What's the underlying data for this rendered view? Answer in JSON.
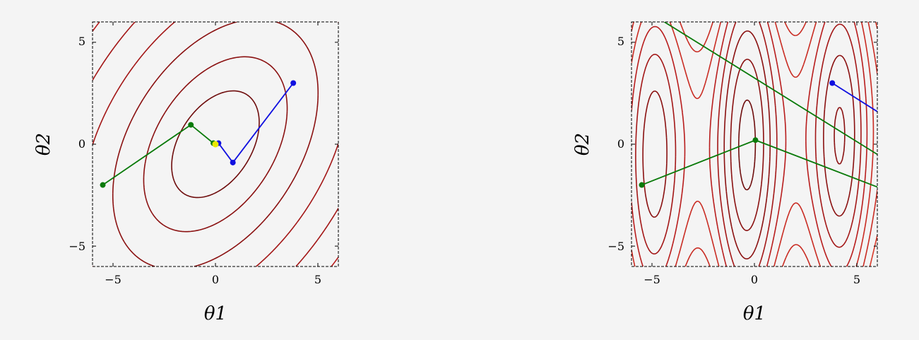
{
  "chart_data": [
    {
      "type": "contour",
      "title": "",
      "xlabel": "θ1",
      "ylabel": "θ2",
      "xlim": [
        -6,
        6
      ],
      "ylim": [
        -6,
        6
      ],
      "xticks": [
        -5,
        0,
        5
      ],
      "yticks": [
        -5,
        0,
        5
      ],
      "xtick_labels": [
        "−5",
        "0",
        "5"
      ],
      "ytick_labels": [
        "−5",
        "0",
        "5"
      ],
      "grid": false,
      "surface": "elongated elliptical bowl with minimum near (0, 0), tilted major axis",
      "paths": [
        {
          "color": "#1010e0",
          "points": [
            [
              3.8,
              3.0
            ],
            [
              0.85,
              -0.9
            ],
            [
              0.15,
              0.05
            ],
            [
              0.0,
              0.0
            ]
          ]
        },
        {
          "color": "#0a7a0a",
          "points": [
            [
              -5.5,
              -2.0
            ],
            [
              -1.2,
              0.95
            ],
            [
              -0.1,
              0.05
            ],
            [
              0.0,
              0.0
            ]
          ]
        }
      ],
      "markers": [
        {
          "color": "#e8e800",
          "x": 0.0,
          "y": 0.0
        }
      ]
    },
    {
      "type": "contour",
      "title": "",
      "xlabel": "θ1",
      "ylabel": "θ2",
      "xlim": [
        -6,
        6
      ],
      "ylim": [
        -6,
        6
      ],
      "xticks": [
        -5,
        0,
        5
      ],
      "yticks": [
        -5,
        0,
        5
      ],
      "xtick_labels": [
        "−5",
        "0",
        "5"
      ],
      "ytick_labels": [
        "−5",
        "0",
        "5"
      ],
      "grid": false,
      "surface": "multimodal surface with several local minima",
      "paths": [
        {
          "color": "#1010e0",
          "points": [
            [
              3.8,
              3.0
            ],
            [
              6.0,
              1.6
            ]
          ]
        },
        {
          "color": "#0a7a0a",
          "points": [
            [
              -5.5,
              -2.0
            ],
            [
              0.05,
              0.2
            ],
            [
              6.0,
              -2.1
            ]
          ]
        },
        {
          "color": "#0a7a0a",
          "points": [
            [
              -4.4,
              6.0
            ],
            [
              6.0,
              -0.5
            ]
          ]
        }
      ],
      "markers": []
    }
  ]
}
